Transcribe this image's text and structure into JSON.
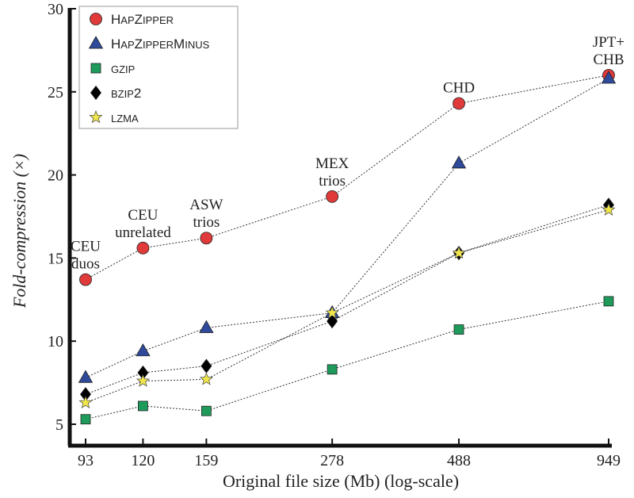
{
  "chart_data": {
    "type": "line",
    "title": "",
    "xlabel": "Original file size (Mb) (log-scale)",
    "ylabel": "Fold-compression (×)",
    "log_x": true,
    "x": [
      93,
      120,
      159,
      278,
      488,
      949
    ],
    "x_tick_labels": [
      "93",
      "120",
      "159",
      "278",
      "488",
      "949"
    ],
    "ylim": [
      5,
      30
    ],
    "y_ticks": [
      5,
      10,
      15,
      20,
      25,
      30
    ],
    "y_tick_labels": [
      "5",
      "10",
      "15",
      "20",
      "25",
      "30"
    ],
    "grid": false,
    "legend_position": "top-left",
    "series": [
      {
        "name": "HapZipper",
        "upper": [
          "H",
          "Z"
        ],
        "lower": [
          "ap",
          "ipper"
        ],
        "marker": "circle",
        "color": "#e03a3a",
        "values": [
          13.7,
          15.6,
          16.2,
          18.7,
          24.3,
          26.0
        ]
      },
      {
        "name": "HapZipperMinus",
        "upper": [
          "H",
          "Z",
          "M"
        ],
        "lower": [
          "ap",
          "ipper",
          "inus"
        ],
        "marker": "triangle",
        "color": "#2f4a9a",
        "values": [
          7.8,
          9.4,
          10.8,
          11.7,
          20.7,
          25.8
        ]
      },
      {
        "name": "gzip",
        "upper": [],
        "lower": [
          "gzip"
        ],
        "marker": "square",
        "color": "#1e9a5a",
        "values": [
          5.3,
          6.1,
          5.8,
          8.3,
          10.7,
          12.4
        ]
      },
      {
        "name": "bzip2",
        "upper": [
          "2"
        ],
        "lower": [
          "bzip"
        ],
        "marker": "diamond",
        "color": "#000000",
        "values": [
          6.8,
          8.1,
          8.5,
          11.2,
          15.3,
          18.2
        ]
      },
      {
        "name": "lzma",
        "upper": [],
        "lower": [
          "lzma"
        ],
        "marker": "star",
        "color": "#f0e64a",
        "values": [
          6.3,
          7.6,
          7.7,
          11.7,
          15.3,
          17.9
        ]
      }
    ],
    "annotations": [
      {
        "lines": [
          "CEU",
          "duos"
        ],
        "x": 93,
        "y": 13.7
      },
      {
        "lines": [
          "CEU",
          "unrelated"
        ],
        "x": 120,
        "y": 15.6
      },
      {
        "lines": [
          "ASW",
          "trios"
        ],
        "x": 159,
        "y": 16.2
      },
      {
        "lines": [
          "MEX",
          "trios"
        ],
        "x": 278,
        "y": 18.7
      },
      {
        "lines": [
          "CHD"
        ],
        "x": 488,
        "y": 24.3
      },
      {
        "lines": [
          "JPT+",
          "CHB"
        ],
        "x": 949,
        "y": 26.0
      }
    ]
  }
}
